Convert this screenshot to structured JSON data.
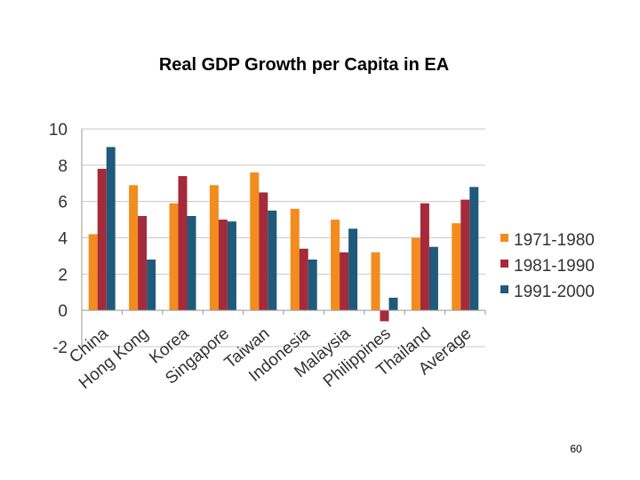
{
  "slide": {
    "page_number": "60"
  },
  "chart_data": {
    "type": "bar",
    "title": "Real GDP Growth per Capita in EA",
    "xlabel": "",
    "ylabel": "",
    "ylim": [
      -2,
      10
    ],
    "yticks": [
      "-2",
      "0",
      "2",
      "4",
      "6",
      "8",
      "10"
    ],
    "grid": true,
    "legend_position": "right",
    "categories": [
      "China",
      "Hong Kong",
      "Korea",
      "Singapore",
      "Taiwan",
      "Indonesia",
      "Malaysia",
      "Philippines",
      "Thailand",
      "Average"
    ],
    "series": [
      {
        "name": "1971-1980",
        "color": "#F28C1E",
        "values": [
          4.2,
          6.9,
          5.9,
          6.9,
          7.6,
          5.6,
          5.0,
          3.2,
          4.0,
          4.8
        ]
      },
      {
        "name": "1981-1990",
        "color": "#A52A3A",
        "values": [
          7.8,
          5.2,
          7.4,
          5.0,
          6.5,
          3.4,
          3.2,
          -0.6,
          5.9,
          6.1
        ]
      },
      {
        "name": "1991-2000",
        "color": "#1F5A7A",
        "values": [
          9.0,
          2.8,
          5.2,
          4.9,
          5.5,
          2.8,
          4.5,
          0.7,
          3.5,
          6.8
        ]
      }
    ]
  }
}
